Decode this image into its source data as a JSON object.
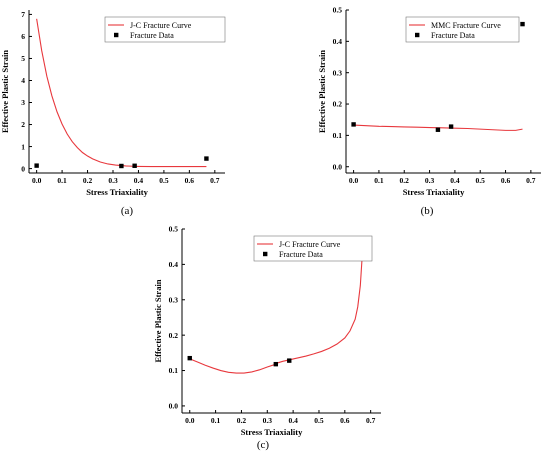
{
  "figure": {
    "panels": [
      {
        "label": "(a)"
      },
      {
        "label": "(b)"
      },
      {
        "label": "(c)"
      }
    ]
  },
  "chart_data": [
    {
      "type": "line",
      "panel": "(a)",
      "xlabel": "Stress Triaxiality",
      "ylabel": "Effective Plastic Strain",
      "xlim": [
        -0.03,
        0.74
      ],
      "ylim": [
        -0.2,
        7.2
      ],
      "xticks": [
        0.0,
        0.1,
        0.2,
        0.3,
        0.4,
        0.5,
        0.6,
        0.7
      ],
      "yticks": [
        0,
        1,
        2,
        3,
        4,
        5,
        6,
        7
      ],
      "xtick_labels": [
        "0.0",
        "0.1",
        "0.2",
        "0.3",
        "0.4",
        "0.5",
        "0.6",
        "0.7"
      ],
      "ytick_labels": [
        "0",
        "1",
        "2",
        "3",
        "4",
        "5",
        "6",
        "7"
      ],
      "legend_position": "top-center",
      "series": [
        {
          "name": "J-C Fracture Curve",
          "kind": "line",
          "color": "#e8383d",
          "x": [
            0.0,
            0.02,
            0.04,
            0.06,
            0.08,
            0.1,
            0.12,
            0.14,
            0.16,
            0.18,
            0.2,
            0.22,
            0.25,
            0.28,
            0.31,
            0.35,
            0.4,
            0.45,
            0.5,
            0.55,
            0.6,
            0.667
          ],
          "y": [
            6.8,
            5.35,
            4.2,
            3.3,
            2.58,
            2.02,
            1.57,
            1.22,
            0.95,
            0.73,
            0.57,
            0.44,
            0.3,
            0.21,
            0.16,
            0.12,
            0.1,
            0.09,
            0.09,
            0.09,
            0.09,
            0.09
          ]
        },
        {
          "name": "Fracture Data",
          "kind": "scatter",
          "color": "#000000",
          "x": [
            0.0,
            0.333,
            0.385,
            0.667
          ],
          "y": [
            0.135,
            0.118,
            0.128,
            0.455
          ]
        }
      ]
    },
    {
      "type": "line",
      "panel": "(b)",
      "xlabel": "Stress Triaxiality",
      "ylabel": "Effective Plastic Strain",
      "xlim": [
        -0.03,
        0.74
      ],
      "ylim": [
        -0.02,
        0.5
      ],
      "xticks": [
        0.0,
        0.1,
        0.2,
        0.3,
        0.4,
        0.5,
        0.6,
        0.7
      ],
      "yticks": [
        0.0,
        0.1,
        0.2,
        0.3,
        0.4,
        0.5
      ],
      "xtick_labels": [
        "0.0",
        "0.1",
        "0.2",
        "0.3",
        "0.4",
        "0.5",
        "0.6",
        "0.7"
      ],
      "ytick_labels": [
        "0.0",
        "0.1",
        "0.2",
        "0.3",
        "0.4",
        "0.5"
      ],
      "legend_position": "top-center",
      "series": [
        {
          "name": "MMC Fracture Curve",
          "kind": "line",
          "color": "#e8383d",
          "x": [
            0.0,
            0.05,
            0.1,
            0.15,
            0.2,
            0.25,
            0.3,
            0.35,
            0.4,
            0.45,
            0.5,
            0.55,
            0.6,
            0.64,
            0.667
          ],
          "y": [
            0.133,
            0.131,
            0.129,
            0.128,
            0.127,
            0.126,
            0.125,
            0.124,
            0.123,
            0.122,
            0.12,
            0.118,
            0.116,
            0.116,
            0.12
          ]
        },
        {
          "name": "Fracture Data",
          "kind": "scatter",
          "color": "#000000",
          "x": [
            0.0,
            0.333,
            0.385,
            0.667
          ],
          "y": [
            0.135,
            0.118,
            0.128,
            0.455
          ]
        }
      ]
    },
    {
      "type": "line",
      "panel": "(c)",
      "xlabel": "Stress Triaxiality",
      "ylabel": "Effective Plastic Strain",
      "xlim": [
        -0.03,
        0.74
      ],
      "ylim": [
        -0.02,
        0.5
      ],
      "xticks": [
        0.0,
        0.1,
        0.2,
        0.3,
        0.4,
        0.5,
        0.6,
        0.7
      ],
      "yticks": [
        0.0,
        0.1,
        0.2,
        0.3,
        0.4,
        0.5
      ],
      "xtick_labels": [
        "0.0",
        "0.1",
        "0.2",
        "0.3",
        "0.4",
        "0.5",
        "0.6",
        "0.7"
      ],
      "ytick_labels": [
        "0.0",
        "0.1",
        "0.2",
        "0.3",
        "0.4",
        "0.5"
      ],
      "legend_position": "top-center",
      "series": [
        {
          "name": "J-C Fracture Curve",
          "kind": "line",
          "color": "#e8383d",
          "segments": [
            {
              "x": [
                0.0,
                0.03,
                0.06,
                0.09,
                0.12,
                0.15,
                0.18,
                0.21,
                0.24,
                0.27,
                0.3,
                0.333
              ],
              "y": [
                0.133,
                0.124,
                0.115,
                0.107,
                0.1,
                0.095,
                0.093,
                0.093,
                0.096,
                0.102,
                0.11,
                0.118
              ]
            },
            {
              "x": [
                0.333,
                0.36,
                0.39,
                0.42,
                0.45,
                0.48,
                0.51,
                0.54,
                0.57,
                0.6,
                0.62,
                0.64,
                0.65,
                0.66,
                0.667
              ],
              "y": [
                0.12,
                0.126,
                0.131,
                0.136,
                0.141,
                0.147,
                0.154,
                0.163,
                0.175,
                0.192,
                0.212,
                0.245,
                0.28,
                0.34,
                0.42
              ]
            }
          ]
        },
        {
          "name": "Fracture Data",
          "kind": "scatter",
          "color": "#000000",
          "x": [
            0.0,
            0.333,
            0.385,
            0.667
          ],
          "y": [
            0.135,
            0.118,
            0.128,
            0.455
          ]
        }
      ]
    }
  ]
}
